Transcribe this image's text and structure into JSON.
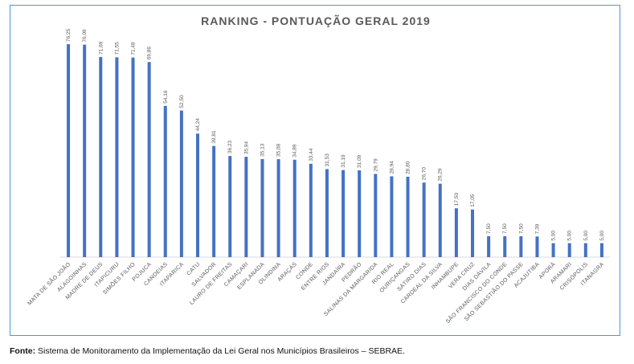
{
  "colors": {
    "bar": "#4472c4",
    "frame": "#4f97d1",
    "title": "#595959",
    "label": "#595959"
  },
  "chart_data": {
    "type": "bar",
    "title": "RANKING - PONTUAÇÃO GERAL 2019",
    "xlabel": "",
    "ylabel": "",
    "ylim": [
      0,
      80
    ],
    "grid": false,
    "categories": [
      "MATA DE SÃO JOÃO",
      "ALAGOINHAS",
      "MADRE DE DEUS",
      "ITAPICURU",
      "SIMÕES FILHO",
      "POJUCA",
      "CANDEIAS",
      "ITAPARICA",
      "CATU",
      "SALVADOR",
      "LAURO DE FREITAS",
      "CAMAÇARI",
      "ESPLANADA",
      "OLINDINA",
      "ARAÇÁS",
      "CONDE",
      "ENTRE RIOS",
      "JANDAÍRA",
      "PEDRÃO",
      "SALINAS DA MARGARIDA",
      "RIO REAL",
      "OURIÇANGAS",
      "SÁTIRO DIAS",
      "CARDEAL DA SILVA",
      "INHAMBUPE",
      "VERA CRUZ",
      "DIAS DÁVILA",
      "SÃO FRANCISCO DO CONDE",
      "SÃO SEBASTIÃO DO PASSE",
      "ACAJUTIBA",
      "APORÁ",
      "ARAMARI",
      "CRISÓPOLIS",
      "ITANAGRA"
    ],
    "values": [
      76.25,
      76.09,
      71.69,
      71.55,
      71.48,
      69.86,
      54.16,
      52.5,
      44.24,
      39.81,
      36.23,
      35.94,
      35.13,
      35.08,
      34.89,
      33.44,
      31.53,
      31.19,
      31.09,
      29.79,
      28.94,
      28.8,
      26.7,
      26.29,
      17.5,
      17.05,
      7.5,
      7.5,
      7.5,
      7.39,
      5.0,
      5.0,
      5.0,
      5.0
    ],
    "value_labels": [
      "76,25",
      "76,09",
      "71,69",
      "71,55",
      "71,48",
      "69,86",
      "54,16",
      "52,50",
      "44,24",
      "39,81",
      "36,23",
      "35,94",
      "35,13",
      "35,08",
      "34,89",
      "33,44",
      "31,53",
      "31,19",
      "31,09",
      "29,79",
      "28,94",
      "28,80",
      "26,70",
      "26,29",
      "17,50",
      "17,05",
      "7,50",
      "7,50",
      "7,50",
      "7,39",
      "5,00",
      "5,00",
      "5,00",
      "5,00"
    ]
  },
  "source": {
    "label": "Fonte:",
    "text": " Sistema de Monitoramento da Implementação da Lei Geral nos Municípios Brasileiros – SEBRAE."
  }
}
